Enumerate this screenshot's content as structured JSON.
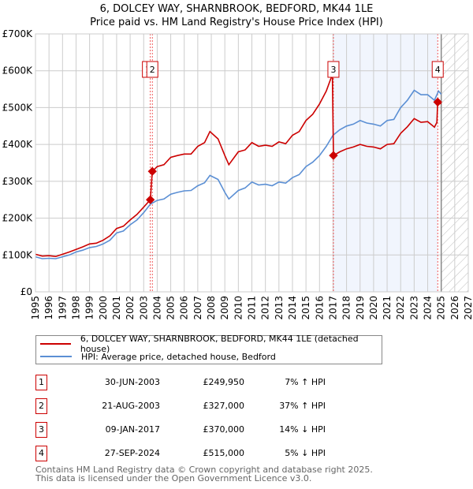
{
  "chart_data": {
    "type": "line",
    "title": "6, DOLCEY WAY, SHARNBROOK, BEDFORD, MK44 1LE",
    "subtitle": "Price paid vs. HM Land Registry's House Price Index (HPI)",
    "xlim": [
      1995,
      2027
    ],
    "ylim": [
      0,
      700000
    ],
    "x_ticks": [
      "1995",
      "1996",
      "1997",
      "1998",
      "1999",
      "2000",
      "2001",
      "2002",
      "2003",
      "2004",
      "2005",
      "2006",
      "2007",
      "2008",
      "2009",
      "2010",
      "2011",
      "2012",
      "2013",
      "2014",
      "2015",
      "2016",
      "2017",
      "2018",
      "2019",
      "2020",
      "2021",
      "2022",
      "2023",
      "2024",
      "2025",
      "2026",
      "2027"
    ],
    "y_ticks": [
      {
        "v": 0,
        "label": "£0"
      },
      {
        "v": 100000,
        "label": "£100K"
      },
      {
        "v": 200000,
        "label": "£200K"
      },
      {
        "v": 300000,
        "label": "£300K"
      },
      {
        "v": 400000,
        "label": "£400K"
      },
      {
        "v": 500000,
        "label": "£500K"
      },
      {
        "v": 600000,
        "label": "£600K"
      },
      {
        "v": 700000,
        "label": "£700K"
      }
    ],
    "grid": true,
    "shaded_range": [
      2017.03,
      2024.74
    ],
    "future_hatch_from": 2025.0,
    "series": [
      {
        "name": "6, DOLCEY WAY, SHARNBROOK, BEDFORD, MK44 1LE (detached house)",
        "color": "#cc0000",
        "points": [
          [
            1995,
            102
          ],
          [
            1995.5,
            97
          ],
          [
            1996,
            98
          ],
          [
            1996.5,
            96
          ],
          [
            1997,
            102
          ],
          [
            1997.5,
            108
          ],
          [
            1998,
            115
          ],
          [
            1998.5,
            122
          ],
          [
            1999,
            130
          ],
          [
            1999.5,
            132
          ],
          [
            2000,
            140
          ],
          [
            2000.5,
            152
          ],
          [
            2001,
            172
          ],
          [
            2001.5,
            178
          ],
          [
            2002,
            195
          ],
          [
            2002.5,
            210
          ],
          [
            2003,
            230
          ],
          [
            2003.49,
            250
          ],
          [
            2003.64,
            327
          ],
          [
            2004,
            340
          ],
          [
            2004.5,
            345
          ],
          [
            2005,
            365
          ],
          [
            2005.5,
            370
          ],
          [
            2006,
            374
          ],
          [
            2006.5,
            374
          ],
          [
            2007,
            395
          ],
          [
            2007.5,
            405
          ],
          [
            2007.9,
            435
          ],
          [
            2008.5,
            415
          ],
          [
            2009,
            370
          ],
          [
            2009.3,
            345
          ],
          [
            2010,
            380
          ],
          [
            2010.5,
            385
          ],
          [
            2011,
            405
          ],
          [
            2011.5,
            395
          ],
          [
            2012,
            398
          ],
          [
            2012.5,
            395
          ],
          [
            2013,
            407
          ],
          [
            2013.5,
            402
          ],
          [
            2014,
            425
          ],
          [
            2014.5,
            435
          ],
          [
            2015,
            465
          ],
          [
            2015.5,
            482
          ],
          [
            2016,
            510
          ],
          [
            2016.5,
            545
          ],
          [
            2016.95,
            590
          ],
          [
            2017.03,
            370
          ],
          [
            2017.5,
            380
          ],
          [
            2018,
            388
          ],
          [
            2018.5,
            393
          ],
          [
            2019,
            400
          ],
          [
            2019.5,
            395
          ],
          [
            2020,
            393
          ],
          [
            2020.5,
            388
          ],
          [
            2021,
            400
          ],
          [
            2021.5,
            402
          ],
          [
            2022,
            430
          ],
          [
            2022.5,
            448
          ],
          [
            2023,
            470
          ],
          [
            2023.5,
            460
          ],
          [
            2024,
            462
          ],
          [
            2024.5,
            447
          ],
          [
            2024.68,
            460
          ],
          [
            2024.74,
            515
          ],
          [
            2025,
            510
          ]
        ]
      },
      {
        "name": "HPI: Average price, detached house, Bedford",
        "color": "#5b8fd4",
        "points": [
          [
            1995,
            95
          ],
          [
            1995.5,
            90
          ],
          [
            1996,
            91
          ],
          [
            1996.5,
            90
          ],
          [
            1997,
            95
          ],
          [
            1997.5,
            100
          ],
          [
            1998,
            108
          ],
          [
            1998.5,
            113
          ],
          [
            1999,
            120
          ],
          [
            1999.5,
            123
          ],
          [
            2000,
            130
          ],
          [
            2000.5,
            140
          ],
          [
            2001,
            160
          ],
          [
            2001.5,
            165
          ],
          [
            2002,
            182
          ],
          [
            2002.5,
            195
          ],
          [
            2003,
            215
          ],
          [
            2003.5,
            238
          ],
          [
            2004,
            248
          ],
          [
            2004.5,
            252
          ],
          [
            2005,
            265
          ],
          [
            2005.5,
            270
          ],
          [
            2006,
            274
          ],
          [
            2006.5,
            275
          ],
          [
            2007,
            288
          ],
          [
            2007.5,
            296
          ],
          [
            2007.9,
            316
          ],
          [
            2008.5,
            305
          ],
          [
            2009,
            270
          ],
          [
            2009.3,
            252
          ],
          [
            2010,
            275
          ],
          [
            2010.5,
            282
          ],
          [
            2011,
            298
          ],
          [
            2011.5,
            290
          ],
          [
            2012,
            292
          ],
          [
            2012.5,
            288
          ],
          [
            2013,
            298
          ],
          [
            2013.5,
            295
          ],
          [
            2014,
            310
          ],
          [
            2014.5,
            318
          ],
          [
            2015,
            340
          ],
          [
            2015.5,
            352
          ],
          [
            2016,
            370
          ],
          [
            2016.5,
            395
          ],
          [
            2017,
            425
          ],
          [
            2017.5,
            440
          ],
          [
            2018,
            450
          ],
          [
            2018.5,
            455
          ],
          [
            2019,
            465
          ],
          [
            2019.5,
            458
          ],
          [
            2020,
            455
          ],
          [
            2020.5,
            450
          ],
          [
            2021,
            465
          ],
          [
            2021.5,
            468
          ],
          [
            2022,
            500
          ],
          [
            2022.5,
            520
          ],
          [
            2023,
            547
          ],
          [
            2023.5,
            535
          ],
          [
            2024,
            535
          ],
          [
            2024.5,
            520
          ],
          [
            2024.8,
            545
          ],
          [
            2025,
            536
          ]
        ]
      }
    ],
    "sales": [
      {
        "num": "1",
        "x": 2003.49,
        "value": 249950,
        "date": "30-JUN-2003",
        "price": "£249,950",
        "hpi": "7% ↑ HPI"
      },
      {
        "num": "2",
        "x": 2003.64,
        "value": 327000,
        "date": "21-AUG-2003",
        "price": "£327,000",
        "hpi": "37% ↑ HPI"
      },
      {
        "num": "3",
        "x": 2017.03,
        "value": 370000,
        "date": "09-JAN-2017",
        "price": "£370,000",
        "hpi": "14% ↓ HPI"
      },
      {
        "num": "4",
        "x": 2024.74,
        "value": 515000,
        "date": "27-SEP-2024",
        "price": "£515,000",
        "hpi": "5% ↓ HPI"
      }
    ]
  },
  "footer": {
    "line1": "Contains HM Land Registry data © Crown copyright and database right 2025.",
    "line2": "This data is licensed under the Open Government Licence v3.0."
  }
}
